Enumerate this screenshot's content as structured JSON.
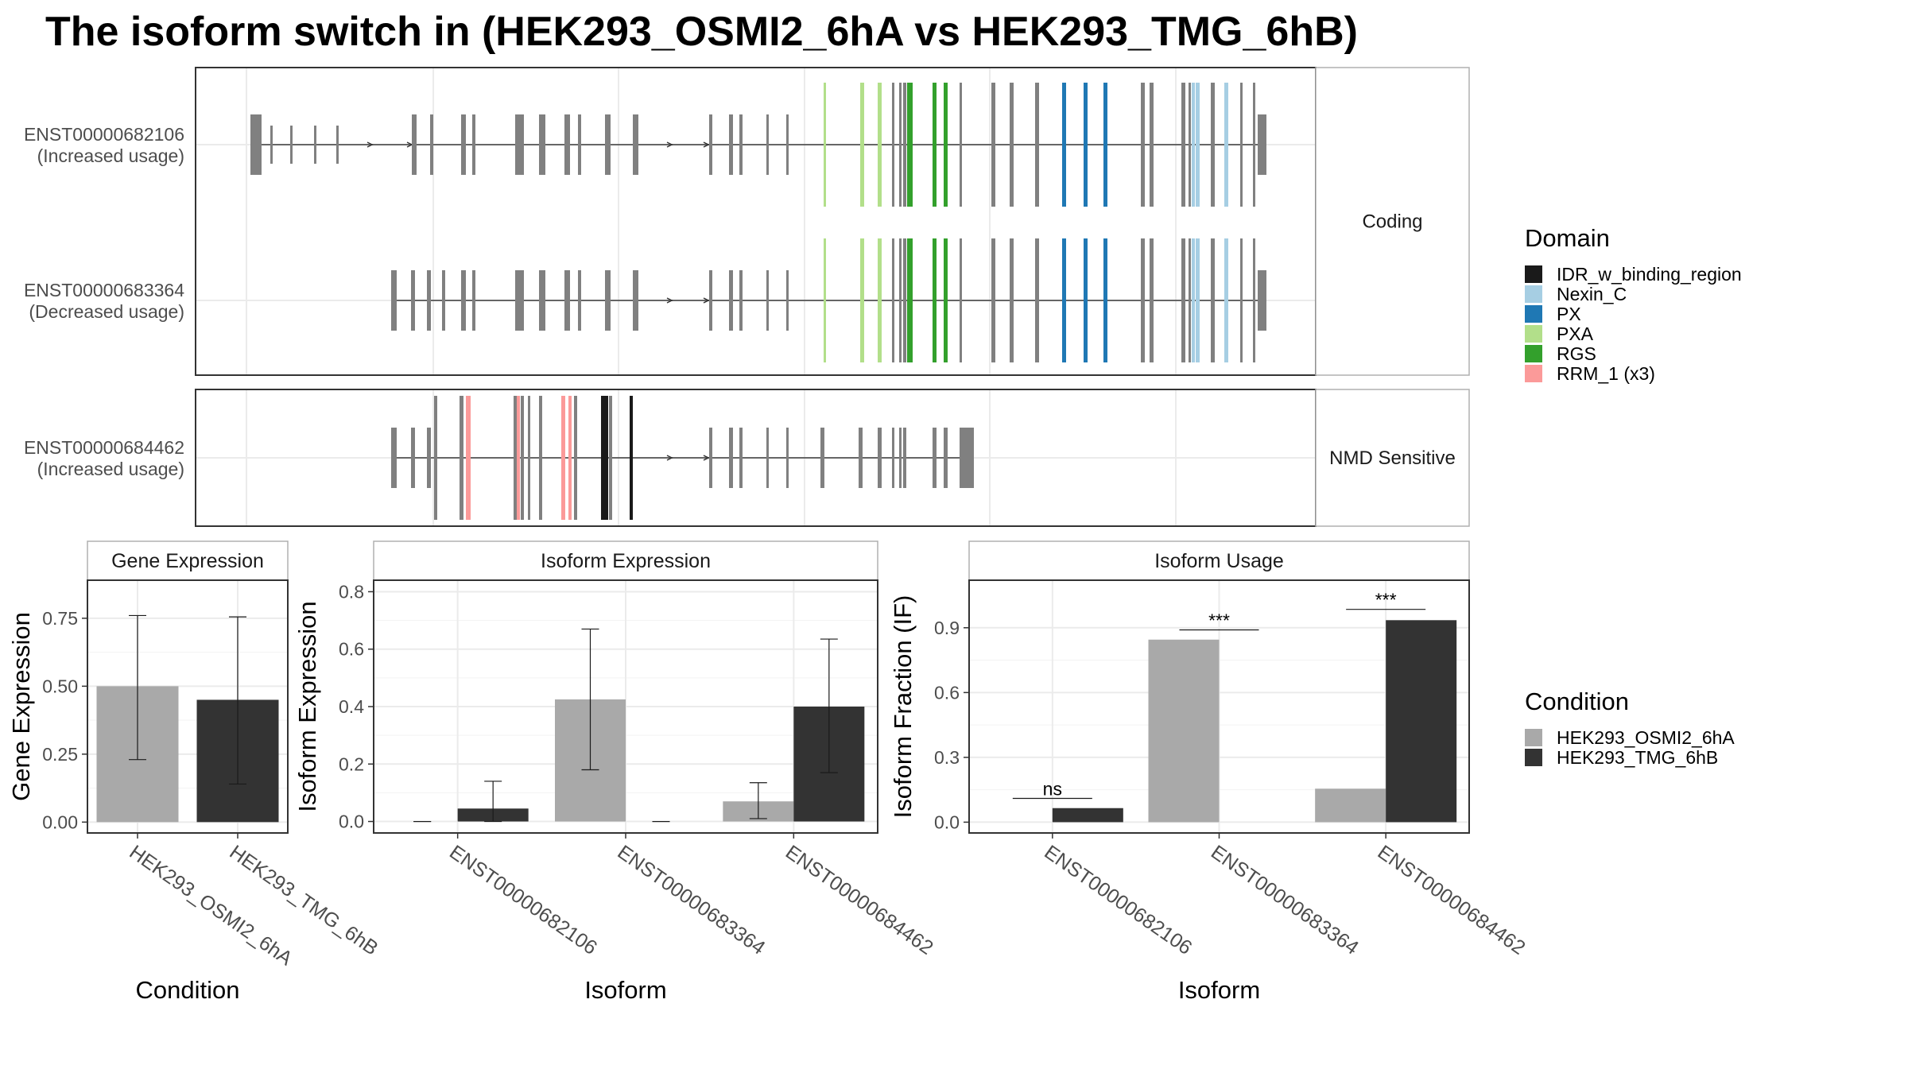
{
  "title": "The isoform switch in  (HEK293_OSMI2_6hA vs HEK293_TMG_6hB)",
  "colors": {
    "exon": "#808080",
    "strip_border": "#4d4d4d",
    "panel_border": "#333333",
    "grid": "#ebebeb",
    "condA": "#A9A9A9",
    "condB": "#333333"
  },
  "transcript_panels": [
    {
      "strip_label": "Coding",
      "tracks": [
        {
          "id": "ENST00000682106",
          "usage": "(Increased usage)"
        },
        {
          "id": "ENST00000683364",
          "usage": "(Decreased usage)"
        }
      ]
    },
    {
      "strip_label": "NMD Sensitive",
      "tracks": [
        {
          "id": "ENST00000684462",
          "usage": "(Increased usage)"
        }
      ]
    }
  ],
  "domain_legend": {
    "title": "Domain",
    "items": [
      {
        "label": "IDR_w_binding_region",
        "color": "#1a1a1a"
      },
      {
        "label": "Nexin_C",
        "color": "#A6CEE3"
      },
      {
        "label": "PX",
        "color": "#1F78B4"
      },
      {
        "label": "PXA",
        "color": "#B2DF8A"
      },
      {
        "label": "RGS",
        "color": "#33A02C"
      },
      {
        "label": "RRM_1 (x3)",
        "color": "#FB9A99"
      }
    ]
  },
  "condition_legend": {
    "title": "Condition",
    "items": [
      {
        "label": "HEK293_OSMI2_6hA",
        "color": "#A9A9A9"
      },
      {
        "label": "HEK293_TMG_6hB",
        "color": "#333333"
      }
    ]
  },
  "chart_data": [
    {
      "type": "bar",
      "title": "Gene Expression",
      "xlabel": "Condition",
      "ylabel": "Gene Expression",
      "categories": [
        "HEK293_OSMI2_6hA",
        "HEK293_TMG_6hB"
      ],
      "values": [
        0.5,
        0.45
      ],
      "error_low": [
        0.23,
        0.14
      ],
      "error_high": [
        0.76,
        0.755
      ],
      "ylim": [
        -0.04,
        0.89
      ],
      "yticks": [
        0.0,
        0.25,
        0.5,
        0.75
      ],
      "ytick_labels": [
        "0.00",
        "0.25",
        "0.50",
        "0.75"
      ]
    },
    {
      "type": "bar",
      "title": "Isoform Expression",
      "xlabel": "Isoform",
      "ylabel": "Isoform Expression",
      "categories": [
        "ENST00000682106",
        "ENST00000683364",
        "ENST00000684462"
      ],
      "series": [
        {
          "name": "HEK293_OSMI2_6hA",
          "values": [
            0.0,
            0.425,
            0.07
          ],
          "error_low": [
            0.0,
            0.18,
            0.01
          ],
          "error_high": [
            0.0,
            0.67,
            0.135
          ]
        },
        {
          "name": "HEK293_TMG_6hB",
          "values": [
            0.045,
            0.0,
            0.4
          ],
          "error_low": [
            0.0,
            0.0,
            0.17
          ],
          "error_high": [
            0.14,
            0.0,
            0.635
          ]
        }
      ],
      "ylim": [
        -0.04,
        0.84
      ],
      "yticks": [
        0.0,
        0.2,
        0.4,
        0.6,
        0.8
      ],
      "ytick_labels": [
        "0.0",
        "0.2",
        "0.4",
        "0.6",
        "0.8"
      ]
    },
    {
      "type": "bar",
      "title": "Isoform Usage",
      "xlabel": "Isoform",
      "ylabel": "Isoform Fraction (IF)",
      "categories": [
        "ENST00000682106",
        "ENST00000683364",
        "ENST00000684462"
      ],
      "series": [
        {
          "name": "HEK293_OSMI2_6hA",
          "values": [
            0.0,
            0.845,
            0.155
          ]
        },
        {
          "name": "HEK293_TMG_6hB",
          "values": [
            0.065,
            0.0,
            0.935
          ]
        }
      ],
      "significance": [
        "ns",
        "***",
        "***"
      ],
      "sig_y": [
        0.11,
        0.89,
        0.985
      ],
      "ylim": [
        -0.05,
        1.12
      ],
      "yticks": [
        0.0,
        0.3,
        0.6,
        0.9
      ],
      "ytick_labels": [
        "0.0",
        "0.3",
        "0.6",
        "0.9"
      ]
    }
  ]
}
